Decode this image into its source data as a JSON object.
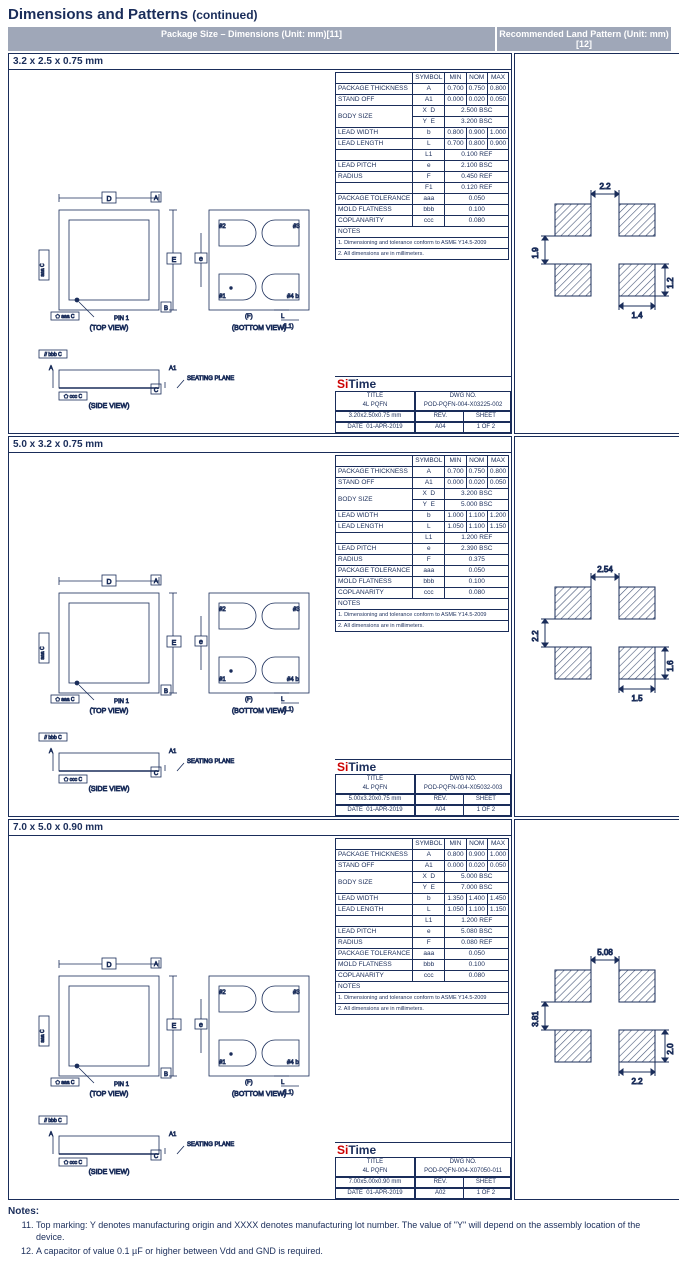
{
  "title_main": "Dimensions and Patterns",
  "title_cont": "(continued)",
  "header_left": "Package Size – Dimensions (Unit: mm)[11]",
  "header_right": "Recommended Land Pattern (Unit: mm)[12]",
  "brand_si": "Si",
  "brand_time": "Time",
  "view_top": "(TOP VIEW)",
  "view_bottom": "(BOTTOM VIEW)",
  "view_side": "(SIDE VIEW)",
  "pin1": "PIN 1",
  "seating": "SEATING PLANE",
  "spec_hdr_symbol": "SYMBOL",
  "spec_hdr_min": "MIN",
  "spec_hdr_nom": "NOM",
  "spec_hdr_max": "MAX",
  "spec_row_thickness": "PACKAGE THICKNESS",
  "spec_row_standoff": "STAND OFF",
  "spec_row_bodysize": "BODY SIZE",
  "spec_row_leadwidth": "LEAD WIDTH",
  "spec_row_leadlength": "LEAD LENGTH",
  "spec_row_leadpitch": "LEAD PITCH",
  "spec_row_radius": "RADIUS",
  "spec_row_pkgtol": "PACKAGE TOLERANCE",
  "spec_row_moldflat": "MOLD FLATNESS",
  "spec_row_coplan": "COPLANARITY",
  "notes_hdr": "NOTES",
  "note_conform": "1. Dimensioning and tolerance conform to ASME Y14.5-2009",
  "note_mm": "2. All dimensions are in millimeters.",
  "tb_title": "TITLE",
  "tb_4l": "4L PQFN",
  "tb_dwg": "DWG NO.",
  "tb_rev": "REV.",
  "tb_sheet": "SHEET",
  "tb_date": "DATE",
  "tb_datev": "01-APR-2019",
  "tb_sheetv": "1 OF 2",
  "packages": [
    {
      "size": "3.2 x 2.5 x 0.75 mm",
      "spec": {
        "A": [
          "0.700",
          "0.750",
          "0.800"
        ],
        "A1": [
          "0.000",
          "0.020",
          "0.050"
        ],
        "D": [
          "",
          "2.500",
          "BSC"
        ],
        "E": [
          "",
          "3.200",
          "BSC"
        ],
        "b": [
          "0.800",
          "0.900",
          "1.000"
        ],
        "L": [
          "0.700",
          "0.800",
          "0.900"
        ],
        "L1": [
          "",
          "0.100",
          "REF"
        ],
        "e": [
          "",
          "2.100",
          "BSC"
        ],
        "F": [
          "",
          "0.450",
          "REF"
        ],
        "F1": [
          "",
          "0.120",
          "REF"
        ],
        "aaa": [
          "",
          "0.050",
          ""
        ],
        "bbb": [
          "",
          "0.100",
          ""
        ],
        "ccc": [
          "",
          "0.080",
          ""
        ]
      },
      "tb_size": "3.20x2.50x0.75 mm",
      "tb_dwgno": "POD-PQFN-004-X03225-002",
      "tb_revv": "A04",
      "land": {
        "w": "2.2",
        "h": "1.9",
        "pw": "1.4",
        "ph": "1.2"
      }
    },
    {
      "size": "5.0 x 3.2 x 0.75 mm",
      "spec": {
        "A": [
          "0.700",
          "0.750",
          "0.800"
        ],
        "A1": [
          "0.000",
          "0.020",
          "0.050"
        ],
        "D": [
          "",
          "3.200",
          "BSC"
        ],
        "E": [
          "",
          "5.000",
          "BSC"
        ],
        "b": [
          "1.000",
          "1.100",
          "1.200"
        ],
        "L": [
          "1.050",
          "1.100",
          "1.150"
        ],
        "L1": [
          "",
          "1.200",
          "REF"
        ],
        "e": [
          "",
          "2.390",
          "BSC"
        ],
        "F": [
          "",
          "0.375",
          ""
        ],
        "aaa": [
          "",
          "0.050",
          ""
        ],
        "bbb": [
          "",
          "0.100",
          ""
        ],
        "ccc": [
          "",
          "0.080",
          ""
        ]
      },
      "tb_size": "5.00x3.20x0.75 mm",
      "tb_dwgno": "POD-PQFN-004-X05032-003",
      "tb_revv": "A04",
      "land": {
        "w": "2.54",
        "h": "2.2",
        "pw": "1.5",
        "ph": "1.6"
      }
    },
    {
      "size": "7.0 x 5.0 x 0.90 mm",
      "spec": {
        "A": [
          "0.800",
          "0.900",
          "1.000"
        ],
        "A1": [
          "0.000",
          "0.020",
          "0.050"
        ],
        "D": [
          "",
          "5.000",
          "BSC"
        ],
        "E": [
          "",
          "7.000",
          "BSC"
        ],
        "b": [
          "1.350",
          "1.400",
          "1.450"
        ],
        "L": [
          "1.050",
          "1.100",
          "1.150"
        ],
        "L1": [
          "",
          "1.200",
          "REF"
        ],
        "e": [
          "",
          "5.080",
          "BSC"
        ],
        "F": [
          "",
          "0.080",
          "REF"
        ],
        "aaa": [
          "",
          "0.050",
          ""
        ],
        "bbb": [
          "",
          "0.100",
          ""
        ],
        "ccc": [
          "",
          "0.080",
          ""
        ]
      },
      "tb_size": "7.00x5.00x0.90 mm",
      "tb_dwgno": "POD-PQFN-004-X07050-011",
      "tb_revv": "A02",
      "land": {
        "w": "5.08",
        "h": "3.81",
        "pw": "2.2",
        "ph": "2.0"
      }
    }
  ],
  "footnotes_title": "Notes:",
  "footnote_11": "Top marking: Y denotes manufacturing origin and XXXX denotes manufacturing lot number. The value of \"Y\" will depend on the assembly location of the device.",
  "footnote_12": "A capacitor of value 0.1 µF or higher between Vdd and GND is required.",
  "colors": {
    "stroke": "#1a2d5a",
    "hatch": "#4a5a7a"
  }
}
